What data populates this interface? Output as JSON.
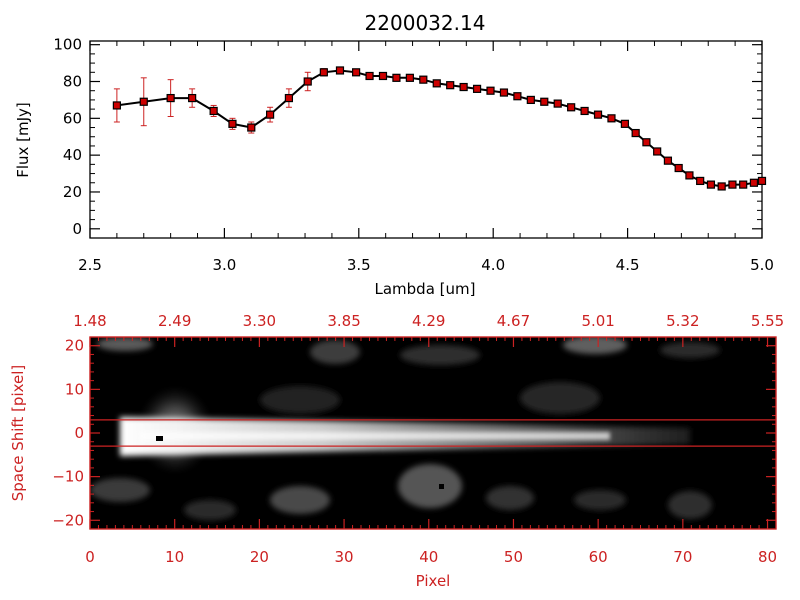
{
  "colors": {
    "axis": "#000000",
    "line": "#000000",
    "marker": "#cc0000",
    "errorbar": "#cc2222",
    "accent": "#cc2222",
    "image_bg": "#000000"
  },
  "chart_data": [
    {
      "type": "line",
      "title": "2200032.14",
      "xlabel": "Lambda [um]",
      "ylabel": "Flux [mJy]",
      "xlim": [
        2.5,
        5.0
      ],
      "ylim": [
        -5,
        102
      ],
      "xticks": [
        2.5,
        3.0,
        3.5,
        4.0,
        4.5,
        5.0
      ],
      "xtick_labels": [
        "2.5",
        "3.0",
        "3.5",
        "4.0",
        "4.5",
        "5.0"
      ],
      "yticks": [
        0,
        20,
        40,
        60,
        80,
        100
      ],
      "ytick_labels": [
        "0",
        "20",
        "40",
        "60",
        "80",
        "100"
      ],
      "grid": false,
      "series": [
        {
          "x": [
            2.6,
            2.7,
            2.8,
            2.88,
            2.96,
            3.03,
            3.1,
            3.17,
            3.24,
            3.31,
            3.37,
            3.43,
            3.49,
            3.54,
            3.59,
            3.64,
            3.69,
            3.74,
            3.79,
            3.84,
            3.89,
            3.94,
            3.99,
            4.04,
            4.09,
            4.14,
            4.19,
            4.24,
            4.29,
            4.34,
            4.39,
            4.44,
            4.49,
            4.53,
            4.57,
            4.61,
            4.65,
            4.69,
            4.73,
            4.77,
            4.81,
            4.85,
            4.89,
            4.93,
            4.97,
            5.0
          ],
          "y": [
            67,
            69,
            71,
            71,
            64,
            57,
            55,
            62,
            71,
            80,
            85,
            86,
            85,
            83,
            83,
            82,
            82,
            81,
            79,
            78,
            77,
            76,
            75,
            74,
            72,
            70,
            69,
            68,
            66,
            64,
            62,
            60,
            57,
            52,
            47,
            42,
            37,
            33,
            29,
            26,
            24,
            23,
            24,
            24,
            25,
            26
          ],
          "yerr": [
            9,
            13,
            10,
            5,
            3,
            3,
            3,
            4,
            5,
            5,
            2,
            1,
            1,
            1,
            1,
            1,
            1,
            1,
            1,
            1,
            1,
            1,
            1,
            1,
            1,
            1,
            1,
            1,
            1,
            1,
            1,
            1,
            1,
            1,
            1,
            1,
            1,
            1,
            1,
            1,
            1,
            1,
            1,
            1,
            1,
            1
          ]
        }
      ]
    },
    {
      "type": "heatmap",
      "xlabel": "Pixel",
      "ylabel": "Space Shift [pixel]",
      "xlim": [
        0,
        81
      ],
      "ylim": [
        -22,
        22
      ],
      "xticks": [
        0,
        10,
        20,
        30,
        40,
        50,
        60,
        70,
        80
      ],
      "xtick_labels": [
        "0",
        "10",
        "20",
        "30",
        "40",
        "50",
        "60",
        "70",
        "80"
      ],
      "yticks": [
        -20,
        -10,
        0,
        10,
        20
      ],
      "ytick_labels": [
        "−20",
        "−10",
        "0",
        "10",
        "20"
      ],
      "top_ticks": [
        0,
        10,
        20,
        30,
        40,
        50,
        60,
        70,
        80
      ],
      "top_tick_labels": [
        "1.48",
        "2.49",
        "3.30",
        "3.85",
        "4.29",
        "4.67",
        "5.01",
        "5.32",
        "5.55"
      ],
      "aperture_lines": [
        3,
        -3
      ],
      "colormap": "grayscale",
      "source_peak_pixel": 10
    }
  ]
}
